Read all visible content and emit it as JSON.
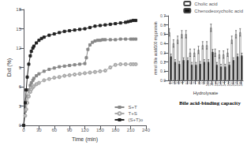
{
  "chart_data": [
    {
      "type": "line",
      "xlabel": "Time (min)",
      "ylabel": "Dxt (%)",
      "xlim": [
        0,
        240
      ],
      "ylim": [
        0,
        18
      ],
      "xticks": [
        0,
        30,
        60,
        90,
        120,
        150,
        180,
        210,
        240
      ],
      "yticks": [
        0,
        3,
        6,
        9,
        12,
        15,
        18
      ],
      "grid": false,
      "legend": "lower right",
      "series": [
        {
          "name": "S+T",
          "color": "#888888",
          "marker": "square",
          "x": [
            0,
            3,
            5,
            7,
            10,
            13,
            15,
            18,
            20,
            25,
            30,
            40,
            50,
            60,
            70,
            80,
            90,
            100,
            110,
            120,
            123,
            126,
            130,
            135,
            140,
            145,
            150,
            155,
            160,
            170,
            180,
            190,
            200,
            210,
            215,
            220
          ],
          "values": [
            0,
            2.2,
            3.5,
            4.5,
            5.5,
            6.2,
            6.6,
            7.0,
            7.3,
            7.7,
            8.0,
            8.4,
            8.7,
            8.9,
            9.1,
            9.2,
            9.3,
            9.4,
            9.5,
            9.6,
            10.5,
            11.8,
            12.5,
            12.9,
            13.1,
            13.2,
            13.2,
            13.3,
            13.3,
            13.3,
            13.3,
            13.4,
            13.4,
            13.4,
            13.4,
            13.4
          ]
        },
        {
          "name": "T+S",
          "color": "#aaaaaa",
          "marker": "open circle",
          "x": [
            0,
            3,
            5,
            7,
            10,
            13,
            15,
            18,
            20,
            25,
            30,
            40,
            50,
            60,
            70,
            80,
            90,
            100,
            110,
            120,
            130,
            140,
            150,
            160,
            170,
            180,
            190,
            200,
            210,
            215,
            220
          ],
          "values": [
            0,
            1.5,
            2.5,
            3.5,
            4.5,
            5.2,
            5.6,
            5.9,
            6.1,
            6.4,
            6.6,
            7.0,
            7.2,
            7.4,
            7.5,
            7.7,
            7.8,
            7.9,
            8.0,
            8.1,
            8.2,
            8.3,
            8.4,
            8.5,
            9.0,
            9.4,
            9.5,
            9.5,
            9.5,
            9.5,
            9.5
          ]
        },
        {
          "name": "(S+T)o",
          "color": "#222222",
          "marker": "square",
          "x": [
            0,
            3,
            5,
            7,
            10,
            13,
            15,
            18,
            20,
            25,
            30,
            35,
            40,
            50,
            60,
            70,
            80,
            90,
            100,
            110,
            120,
            130,
            140,
            150,
            160,
            170,
            180,
            190,
            200,
            205,
            210,
            215,
            220
          ],
          "values": [
            0,
            3.5,
            5.5,
            7.5,
            9.5,
            10.8,
            11.5,
            12.0,
            12.3,
            12.8,
            13.2,
            13.5,
            13.7,
            14.0,
            14.2,
            14.4,
            14.6,
            14.7,
            14.8,
            14.9,
            15.0,
            15.2,
            15.4,
            15.5,
            15.6,
            15.7,
            15.8,
            15.9,
            16.0,
            16.1,
            16.2,
            16.3,
            16.3
          ]
        }
      ]
    },
    {
      "type": "bar",
      "title": "Bile acid-binding capacity",
      "xlabel": "Hydrolysate",
      "ylabel": "mmol Bile acid/100 mg protein",
      "categories": [
        "1",
        "2",
        "3",
        "4",
        "5",
        "6",
        "7",
        "8",
        "9",
        "10",
        "11",
        "12",
        "13",
        "14",
        "15",
        "16",
        "17",
        "18"
      ],
      "ylim": [
        0,
        0.7
      ],
      "yticks": [
        {
          "value": 0,
          "label": "0.0"
        },
        0.1,
        0.2,
        0.3,
        0.4,
        0.5,
        0.6,
        0.7
      ],
      "grid": false,
      "legend": "upper right",
      "series": [
        {
          "name": "Cholic acid",
          "color": "#ffffff",
          "values": [
            0.52,
            0.4,
            0.44,
            0.5,
            0.5,
            0.3,
            0.3,
            0.33,
            0.38,
            0.38,
            0.57,
            0.3,
            0.28,
            0.28,
            0.3,
            0.44,
            0.5,
            0.52
          ],
          "errors": [
            0.04,
            0.04,
            0.04,
            0.04,
            0.04,
            0.04,
            0.04,
            0.04,
            0.04,
            0.04,
            0.04,
            0.04,
            0.04,
            0.04,
            0.04,
            0.04,
            0.04,
            0.04
          ]
        },
        {
          "name": "Chenodeoxycholic acid",
          "color": "#111111",
          "values": [
            0.26,
            0.2,
            0.18,
            0.22,
            0.22,
            0.17,
            0.17,
            0.18,
            0.2,
            0.2,
            0.31,
            0.17,
            0.15,
            0.15,
            0.17,
            0.22,
            0.26,
            0.27
          ],
          "errors": [
            0.025,
            0.025,
            0.025,
            0.025,
            0.025,
            0.025,
            0.025,
            0.025,
            0.025,
            0.025,
            0.025,
            0.025,
            0.025,
            0.025,
            0.025,
            0.025,
            0.025,
            0.025
          ]
        }
      ]
    }
  ]
}
